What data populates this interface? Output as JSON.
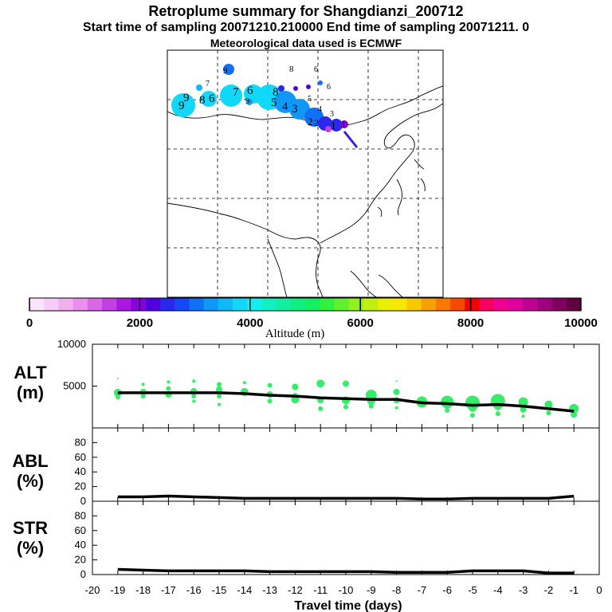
{
  "title": {
    "line1": "Retroplume summary for Shangdianzi_200712",
    "line2": "Start time of sampling 20071210.210000     End time of sampling 20071211.     0",
    "line3": "Meteorological data used is ECMWF"
  },
  "colorbar": {
    "label": "Altitude (m)",
    "ticks": [
      "0",
      "2000",
      "4000",
      "6000",
      "8000",
      "10000"
    ],
    "colors": [
      "#fce4fc",
      "#f8ccf8",
      "#f0b0f0",
      "#e890ec",
      "#d868e8",
      "#c040e0",
      "#a818e0",
      "#8800e0",
      "#5000e0",
      "#2828f0",
      "#1448f8",
      "#1070f8",
      "#1098f8",
      "#10b8f8",
      "#10d8f8",
      "#10f0f0",
      "#10f0c0",
      "#10f0a0",
      "#10f080",
      "#10f060",
      "#30f040",
      "#60f030",
      "#90f020",
      "#c0f010",
      "#e8f000",
      "#f8e800",
      "#f8c800",
      "#f8a000",
      "#f87800",
      "#f84800",
      "#f80000",
      "#f80060",
      "#f00090",
      "#e000a0",
      "#c00090",
      "#a00080",
      "#800060",
      "#600040"
    ]
  },
  "chart_data": [
    {
      "type": "scatter",
      "panel": "ALT",
      "ylabel": "ALT\n(m)",
      "ylabel_line1": "ALT",
      "ylabel_line2": "(m)",
      "ylim": [
        0,
        10000
      ],
      "yticks": [
        "10000",
        "5000"
      ],
      "ytick_values": [
        10000,
        5000
      ],
      "xlim": [
        -20,
        0
      ],
      "mean_line": {
        "x": [
          -19,
          -18,
          -17,
          -16,
          -15,
          -14,
          -13,
          -12,
          -11,
          -10,
          -9,
          -8,
          -7,
          -6,
          -5,
          -4,
          -3,
          -2,
          -1
        ],
        "y": [
          4200,
          4200,
          4200,
          4200,
          4200,
          4100,
          3900,
          3800,
          3600,
          3500,
          3400,
          3400,
          3000,
          2900,
          2700,
          2800,
          2600,
          2300,
          2000
        ]
      },
      "points": [
        {
          "x": -19,
          "y": 4200,
          "r": 5
        },
        {
          "x": -19,
          "y": 3700,
          "r": 3
        },
        {
          "x": -19,
          "y": 5900,
          "r": 1
        },
        {
          "x": -18,
          "y": 4300,
          "r": 4
        },
        {
          "x": -18,
          "y": 3800,
          "r": 3
        },
        {
          "x": -18,
          "y": 5200,
          "r": 2
        },
        {
          "x": -17,
          "y": 4000,
          "r": 4
        },
        {
          "x": -17,
          "y": 4700,
          "r": 3
        },
        {
          "x": -17,
          "y": 5500,
          "r": 2
        },
        {
          "x": -16,
          "y": 4400,
          "r": 4
        },
        {
          "x": -16,
          "y": 3800,
          "r": 3
        },
        {
          "x": -16,
          "y": 5600,
          "r": 2
        },
        {
          "x": -16,
          "y": 3200,
          "r": 2
        },
        {
          "x": -15,
          "y": 4600,
          "r": 4
        },
        {
          "x": -15,
          "y": 3800,
          "r": 3
        },
        {
          "x": -15,
          "y": 5200,
          "r": 3
        },
        {
          "x": -15,
          "y": 2800,
          "r": 2
        },
        {
          "x": -14,
          "y": 4300,
          "r": 5
        },
        {
          "x": -14,
          "y": 5400,
          "r": 2
        },
        {
          "x": -13,
          "y": 4000,
          "r": 4
        },
        {
          "x": -13,
          "y": 3200,
          "r": 3
        },
        {
          "x": -13,
          "y": 5100,
          "r": 3
        },
        {
          "x": -12,
          "y": 4900,
          "r": 4
        },
        {
          "x": -12,
          "y": 3400,
          "r": 5
        },
        {
          "x": -12,
          "y": 3900,
          "r": 3
        },
        {
          "x": -11,
          "y": 5300,
          "r": 5
        },
        {
          "x": -11,
          "y": 3300,
          "r": 4
        },
        {
          "x": -11,
          "y": 2300,
          "r": 3
        },
        {
          "x": -10,
          "y": 5300,
          "r": 4
        },
        {
          "x": -10,
          "y": 3300,
          "r": 5
        },
        {
          "x": -10,
          "y": 2500,
          "r": 3
        },
        {
          "x": -9,
          "y": 3900,
          "r": 7
        },
        {
          "x": -9,
          "y": 3200,
          "r": 5
        },
        {
          "x": -9,
          "y": 2600,
          "r": 3
        },
        {
          "x": -8,
          "y": 4300,
          "r": 4
        },
        {
          "x": -8,
          "y": 3300,
          "r": 4
        },
        {
          "x": -8,
          "y": 2400,
          "r": 2
        },
        {
          "x": -8,
          "y": 5600,
          "r": 1
        },
        {
          "x": -7,
          "y": 3100,
          "r": 7
        },
        {
          "x": -7,
          "y": 3400,
          "r": 4
        },
        {
          "x": -6,
          "y": 3100,
          "r": 8
        },
        {
          "x": -6,
          "y": 2100,
          "r": 3
        },
        {
          "x": -5,
          "y": 3000,
          "r": 9
        },
        {
          "x": -5,
          "y": 2400,
          "r": 5
        },
        {
          "x": -5,
          "y": 1500,
          "r": 3
        },
        {
          "x": -4,
          "y": 3200,
          "r": 9
        },
        {
          "x": -4,
          "y": 2600,
          "r": 5
        },
        {
          "x": -4,
          "y": 1700,
          "r": 3
        },
        {
          "x": -3,
          "y": 3100,
          "r": 6
        },
        {
          "x": -3,
          "y": 2200,
          "r": 4
        },
        {
          "x": -3,
          "y": 1400,
          "r": 2
        },
        {
          "x": -2,
          "y": 2800,
          "r": 5
        },
        {
          "x": -2,
          "y": 1800,
          "r": 3
        },
        {
          "x": -1,
          "y": 2300,
          "r": 6
        },
        {
          "x": -1,
          "y": 1600,
          "r": 4
        }
      ],
      "point_color": "#33ee66"
    },
    {
      "type": "line",
      "panel": "ABL",
      "ylabel": "ABL\n(%)",
      "ylabel_line1": "ABL",
      "ylabel_line2": "(%)",
      "ylim": [
        0,
        100
      ],
      "yticks": [
        "80",
        "60",
        "40",
        "20",
        "0"
      ],
      "ytick_values": [
        80,
        60,
        40,
        20,
        0
      ],
      "xlim": [
        -20,
        0
      ],
      "x": [
        -19,
        -18,
        -17,
        -16,
        -15,
        -14,
        -13,
        -12,
        -11,
        -10,
        -9,
        -8,
        -7,
        -6,
        -5,
        -4,
        -3,
        -2,
        -1
      ],
      "y": [
        6,
        6,
        7,
        6,
        5,
        4,
        4,
        4,
        4,
        4,
        4,
        4,
        3,
        3,
        4,
        4,
        4,
        4,
        7
      ]
    },
    {
      "type": "line",
      "panel": "STR",
      "ylabel": "STR\n(%)",
      "ylabel_line1": "STR",
      "ylabel_line2": "(%)",
      "ylim": [
        0,
        100
      ],
      "yticks": [
        "80",
        "60",
        "40",
        "20",
        "0"
      ],
      "ytick_values": [
        80,
        60,
        40,
        20,
        0
      ],
      "xlim": [
        -20,
        0
      ],
      "xlabel": "Travel time (days)",
      "xticks": [
        "-20",
        "-19",
        "-18",
        "-17",
        "-16",
        "-15",
        "-14",
        "-13",
        "-12",
        "-11",
        "-10",
        "-9",
        "-8",
        "-7",
        "-6",
        "-5",
        "-4",
        "-3",
        "-2",
        "-1",
        "0"
      ],
      "xtick_values": [
        -20,
        -19,
        -18,
        -17,
        -16,
        -15,
        -14,
        -13,
        -12,
        -11,
        -10,
        -9,
        -8,
        -7,
        -6,
        -5,
        -4,
        -3,
        -2,
        -1,
        0
      ],
      "x": [
        -19,
        -18,
        -17,
        -16,
        -15,
        -14,
        -13,
        -12,
        -11,
        -10,
        -9,
        -8,
        -7,
        -6,
        -5,
        -4,
        -3,
        -2,
        -1
      ],
      "y": [
        7,
        6,
        5,
        5,
        5,
        5,
        4,
        4,
        4,
        4,
        4,
        3,
        3,
        3,
        5,
        5,
        5,
        2,
        2
      ]
    }
  ],
  "map": {
    "day_labels": [
      "9",
      "9",
      "8",
      "6",
      "7",
      "8",
      "9",
      "6",
      "6",
      "9",
      "8",
      "5",
      "4",
      "3",
      "2",
      "1",
      "7",
      "6",
      "5",
      "4",
      "3",
      "2",
      "1"
    ],
    "plume_colors": [
      "#10d8f8",
      "#1098f8",
      "#1070f8",
      "#2828f0",
      "#5000e0",
      "#8800e0",
      "#c040e0"
    ]
  }
}
